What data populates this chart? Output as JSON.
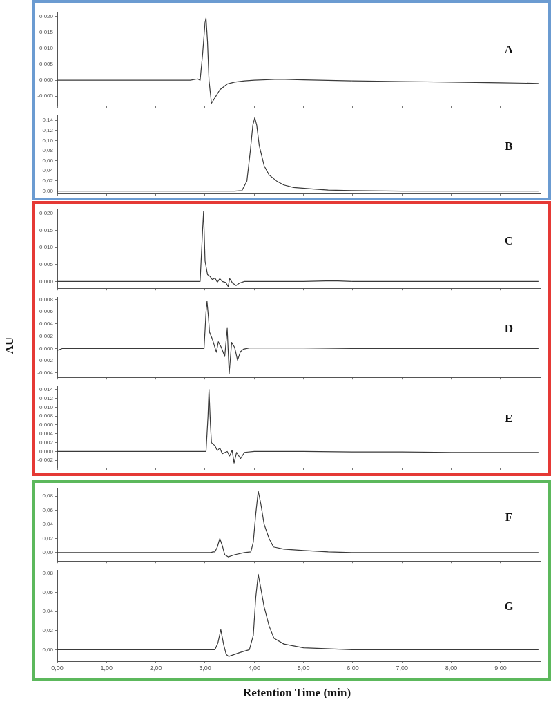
{
  "chart_data": [
    {
      "type": "line",
      "title": "A",
      "xlim": [
        0,
        9.8
      ],
      "ylim": [
        -0.008,
        0.021
      ],
      "tick_labels": "y",
      "xticks": [
        {
          "value": 0,
          "label": null
        },
        {
          "value": 1,
          "label": null
        },
        {
          "value": 2,
          "label": null
        },
        {
          "value": 3,
          "label": null
        },
        {
          "value": 4,
          "label": null
        },
        {
          "value": 5,
          "label": null
        },
        {
          "value": 6,
          "label": null
        },
        {
          "value": 7,
          "label": null
        },
        {
          "value": 8,
          "label": null
        },
        {
          "value": 9,
          "label": null
        }
      ],
      "yticks": [
        {
          "value": -0.005,
          "label": "-0,005"
        },
        {
          "value": 0,
          "label": "0,000"
        },
        {
          "value": 0.005,
          "label": "0,005"
        },
        {
          "value": 0.01,
          "label": "0,010"
        },
        {
          "value": 0.015,
          "label": "0,015"
        },
        {
          "value": 0.02,
          "label": "0,020"
        }
      ],
      "series": [
        {
          "color": "#3a3a3a",
          "x": [
            0,
            1,
            2,
            2.7,
            2.85,
            2.9,
            2.95,
            3.0,
            3.02,
            3.05,
            3.08,
            3.13,
            3.2,
            3.3,
            3.45,
            3.6,
            3.8,
            4.0,
            4.5,
            5.0,
            6,
            7,
            8,
            9,
            9.77
          ],
          "values": [
            0,
            0,
            0,
            0,
            0.0004,
            0,
            0.008,
            0.018,
            0.0195,
            0.012,
            0,
            -0.0072,
            -0.0055,
            -0.003,
            -0.0012,
            -0.0006,
            -0.0002,
            0,
            0.0003,
            0.0001,
            -0.0002,
            -0.0004,
            -0.0006,
            -0.0008,
            -0.001
          ]
        }
      ]
    },
    {
      "type": "line",
      "title": "B",
      "xlim": [
        0,
        9.8
      ],
      "ylim": [
        -0.005,
        0.15
      ],
      "tick_labels": "y",
      "xticks": [
        {
          "value": 0,
          "label": null
        },
        {
          "value": 1,
          "label": null
        },
        {
          "value": 2,
          "label": null
        },
        {
          "value": 3,
          "label": null
        },
        {
          "value": 4,
          "label": null
        },
        {
          "value": 5,
          "label": null
        },
        {
          "value": 6,
          "label": null
        },
        {
          "value": 7,
          "label": null
        },
        {
          "value": 8,
          "label": null
        },
        {
          "value": 9,
          "label": null
        }
      ],
      "yticks": [
        {
          "value": 0,
          "label": "0,00"
        },
        {
          "value": 0.02,
          "label": "0,02"
        },
        {
          "value": 0.04,
          "label": "0,04"
        },
        {
          "value": 0.06,
          "label": "0,06"
        },
        {
          "value": 0.08,
          "label": "0,08"
        },
        {
          "value": 0.1,
          "label": "0,10"
        },
        {
          "value": 0.12,
          "label": "0,12"
        },
        {
          "value": 0.14,
          "label": "0,14"
        }
      ],
      "series": [
        {
          "color": "#3a3a3a",
          "x": [
            0,
            1,
            2,
            3,
            3.6,
            3.75,
            3.85,
            3.92,
            3.97,
            4.01,
            4.05,
            4.1,
            4.2,
            4.3,
            4.45,
            4.6,
            4.8,
            5.2,
            5.5,
            6,
            7,
            8,
            9,
            9.77
          ],
          "values": [
            0,
            0,
            0,
            0,
            0,
            0.001,
            0.02,
            0.08,
            0.13,
            0.145,
            0.13,
            0.09,
            0.05,
            0.032,
            0.02,
            0.012,
            0.007,
            0.004,
            0.002,
            0.001,
            0,
            0,
            0,
            0
          ]
        }
      ]
    },
    {
      "type": "line",
      "title": "C",
      "xlim": [
        0,
        9.8
      ],
      "ylim": [
        -0.002,
        0.021
      ],
      "tick_labels": "y",
      "xticks": [
        {
          "value": 0,
          "label": null
        },
        {
          "value": 1,
          "label": null
        },
        {
          "value": 2,
          "label": null
        },
        {
          "value": 3,
          "label": null
        },
        {
          "value": 4,
          "label": null
        },
        {
          "value": 5,
          "label": null
        },
        {
          "value": 6,
          "label": null
        },
        {
          "value": 7,
          "label": null
        },
        {
          "value": 8,
          "label": null
        },
        {
          "value": 9,
          "label": null
        }
      ],
      "yticks": [
        {
          "value": 0,
          "label": "0,000"
        },
        {
          "value": 0.005,
          "label": "0,005"
        },
        {
          "value": 0.01,
          "label": "0,010"
        },
        {
          "value": 0.015,
          "label": "0,015"
        },
        {
          "value": 0.02,
          "label": "0,020"
        }
      ],
      "series": [
        {
          "color": "#3a3a3a",
          "x": [
            0,
            1,
            2,
            2.9,
            2.95,
            2.97,
            3.0,
            3.05,
            3.1,
            3.15,
            3.2,
            3.25,
            3.3,
            3.35,
            3.42,
            3.47,
            3.5,
            3.56,
            3.63,
            3.7,
            3.8,
            4,
            5,
            5.6,
            6,
            7,
            8,
            9,
            9.77
          ],
          "values": [
            0,
            0,
            0,
            0,
            0.015,
            0.0205,
            0.006,
            0.002,
            0.0015,
            0.0005,
            0.001,
            -0.0002,
            0.0008,
            0,
            -0.0003,
            -0.0015,
            0.0008,
            -0.0005,
            -0.0012,
            -0.0005,
            0,
            0,
            0,
            0.0002,
            0,
            0,
            0,
            0,
            0
          ]
        }
      ]
    },
    {
      "type": "line",
      "title": "D",
      "ylabel": "AU",
      "xlim": [
        0,
        9.8
      ],
      "ylim": [
        -0.0047,
        0.0083
      ],
      "tick_labels": "y",
      "xticks": [
        {
          "value": 0,
          "label": null
        },
        {
          "value": 1,
          "label": null
        },
        {
          "value": 2,
          "label": null
        },
        {
          "value": 3,
          "label": null
        },
        {
          "value": 4,
          "label": null
        },
        {
          "value": 5,
          "label": null
        },
        {
          "value": 6,
          "label": null
        },
        {
          "value": 7,
          "label": null
        },
        {
          "value": 8,
          "label": null
        },
        {
          "value": 9,
          "label": null
        }
      ],
      "yticks": [
        {
          "value": -0.004,
          "label": "-0,004"
        },
        {
          "value": -0.002,
          "label": "-0,002"
        },
        {
          "value": 0,
          "label": "0,000"
        },
        {
          "value": 0.002,
          "label": "0,002"
        },
        {
          "value": 0.004,
          "label": "0,004"
        },
        {
          "value": 0.006,
          "label": "0,006"
        },
        {
          "value": 0.008,
          "label": "0,008"
        }
      ],
      "series": [
        {
          "color": "#3a3a3a",
          "x": [
            0,
            0.1,
            1,
            2,
            2.98,
            3.02,
            3.04,
            3.07,
            3.09,
            3.15,
            3.23,
            3.27,
            3.33,
            3.4,
            3.45,
            3.49,
            3.54,
            3.6,
            3.66,
            3.72,
            3.78,
            3.9,
            5,
            6,
            7,
            8,
            9,
            9.77
          ],
          "values": [
            -0.0003,
            0,
            0,
            0,
            0,
            0.006,
            0.0077,
            0.005,
            0.0027,
            0.0015,
            -0.0006,
            0.0011,
            0.0002,
            -0.0013,
            0.0033,
            -0.0041,
            0.001,
            0.0002,
            -0.0019,
            -0.0005,
            -0.0001,
            0.0001,
            0.0001,
            0,
            0,
            0,
            0,
            0
          ]
        }
      ]
    },
    {
      "type": "line",
      "title": "E",
      "xlim": [
        0,
        9.8
      ],
      "ylim": [
        -0.0037,
        0.0146
      ],
      "tick_labels": "y",
      "xticks": [
        {
          "value": 0,
          "label": null
        },
        {
          "value": 1,
          "label": null
        },
        {
          "value": 2,
          "label": null
        },
        {
          "value": 3,
          "label": null
        },
        {
          "value": 4,
          "label": null
        },
        {
          "value": 5,
          "label": null
        },
        {
          "value": 6,
          "label": null
        },
        {
          "value": 7,
          "label": null
        },
        {
          "value": 8,
          "label": null
        },
        {
          "value": 9,
          "label": null
        }
      ],
      "yticks": [
        {
          "value": -0.002,
          "label": "-0,002"
        },
        {
          "value": 0,
          "label": "0,000"
        },
        {
          "value": 0.002,
          "label": "0,002"
        },
        {
          "value": 0.004,
          "label": "0,004"
        },
        {
          "value": 0.006,
          "label": "0,006"
        },
        {
          "value": 0.008,
          "label": "0,008"
        },
        {
          "value": 0.01,
          "label": "0,010"
        },
        {
          "value": 0.012,
          "label": "0,012"
        },
        {
          "value": 0.014,
          "label": "0,014"
        }
      ],
      "series": [
        {
          "color": "#3a3a3a",
          "x": [
            0,
            1,
            2,
            3.02,
            3.06,
            3.08,
            3.11,
            3.13,
            3.2,
            3.25,
            3.3,
            3.35,
            3.45,
            3.5,
            3.55,
            3.59,
            3.64,
            3.72,
            3.8,
            4,
            5,
            6,
            7,
            8,
            9,
            9.77
          ],
          "values": [
            0,
            0,
            0,
            0,
            0.008,
            0.014,
            0.006,
            0.002,
            0.0013,
            0.0002,
            0.0008,
            -0.0005,
            0,
            -0.001,
            0.0003,
            -0.0026,
            -0.0002,
            -0.0016,
            -0.0002,
            0,
            0,
            -0.0001,
            -0.0001,
            -0.0002,
            -0.0002,
            -0.0002
          ]
        }
      ]
    },
    {
      "type": "line",
      "title": "F",
      "xlim": [
        0,
        9.8
      ],
      "ylim": [
        -0.012,
        0.09
      ],
      "tick_labels": "y",
      "xticks": [
        {
          "value": 0,
          "label": null
        },
        {
          "value": 1,
          "label": null
        },
        {
          "value": 2,
          "label": null
        },
        {
          "value": 3,
          "label": null
        },
        {
          "value": 4,
          "label": null
        },
        {
          "value": 5,
          "label": null
        },
        {
          "value": 6,
          "label": null
        },
        {
          "value": 7,
          "label": null
        },
        {
          "value": 8,
          "label": null
        },
        {
          "value": 9,
          "label": null
        }
      ],
      "yticks": [
        {
          "value": 0,
          "label": "0,00"
        },
        {
          "value": 0.02,
          "label": "0,02"
        },
        {
          "value": 0.04,
          "label": "0,04"
        },
        {
          "value": 0.06,
          "label": "0,06"
        },
        {
          "value": 0.08,
          "label": "0,08"
        }
      ],
      "series": [
        {
          "color": "#3a3a3a",
          "x": [
            0,
            1,
            2,
            3,
            3.12,
            3.16,
            3.2,
            3.25,
            3.3,
            3.35,
            3.4,
            3.47,
            3.6,
            3.8,
            3.93,
            3.98,
            4.03,
            4.08,
            4.13,
            4.2,
            4.3,
            4.39,
            4.6,
            5,
            5.5,
            6,
            7,
            8,
            9,
            9.77
          ],
          "values": [
            0,
            0,
            0,
            0,
            0,
            0.001,
            0.001,
            0.008,
            0.02,
            0.01,
            -0.003,
            -0.006,
            -0.003,
            0,
            0.001,
            0.015,
            0.055,
            0.087,
            0.07,
            0.04,
            0.02,
            0.008,
            0.005,
            0.003,
            0.001,
            0,
            0,
            0,
            0,
            0
          ]
        }
      ]
    },
    {
      "type": "line",
      "title": "G",
      "xlabel": "Retention Time (min)",
      "xlim": [
        0,
        9.8
      ],
      "ylim": [
        -0.012,
        0.083
      ],
      "xticks": [
        {
          "value": 0,
          "label": "0,00"
        },
        {
          "value": 1,
          "label": "1,00"
        },
        {
          "value": 2,
          "label": "2,00"
        },
        {
          "value": 3,
          "label": "3,00"
        },
        {
          "value": 4,
          "label": "4,00"
        },
        {
          "value": 5,
          "label": "5,00"
        },
        {
          "value": 6,
          "label": "6,00"
        },
        {
          "value": 7,
          "label": "7,00"
        },
        {
          "value": 8,
          "label": "8,00"
        },
        {
          "value": 9,
          "label": "9,00"
        }
      ],
      "yticks": [
        {
          "value": 0,
          "label": "0,00"
        },
        {
          "value": 0.02,
          "label": "0,02"
        },
        {
          "value": 0.04,
          "label": "0,04"
        },
        {
          "value": 0.06,
          "label": "0,06"
        },
        {
          "value": 0.08,
          "label": "0,08"
        }
      ],
      "series": [
        {
          "color": "#3a3a3a",
          "x": [
            0,
            1,
            2,
            3,
            3.2,
            3.26,
            3.32,
            3.38,
            3.43,
            3.48,
            3.7,
            3.9,
            3.98,
            4.03,
            4.08,
            4.13,
            4.2,
            4.3,
            4.4,
            4.6,
            5,
            6,
            7,
            8,
            9,
            9.77
          ],
          "values": [
            0,
            0,
            0,
            0,
            0,
            0.007,
            0.021,
            0.005,
            -0.005,
            -0.007,
            -0.003,
            0,
            0.015,
            0.055,
            0.079,
            0.065,
            0.045,
            0.025,
            0.012,
            0.006,
            0.002,
            0,
            0,
            0,
            0,
            0
          ]
        }
      ]
    }
  ]
}
